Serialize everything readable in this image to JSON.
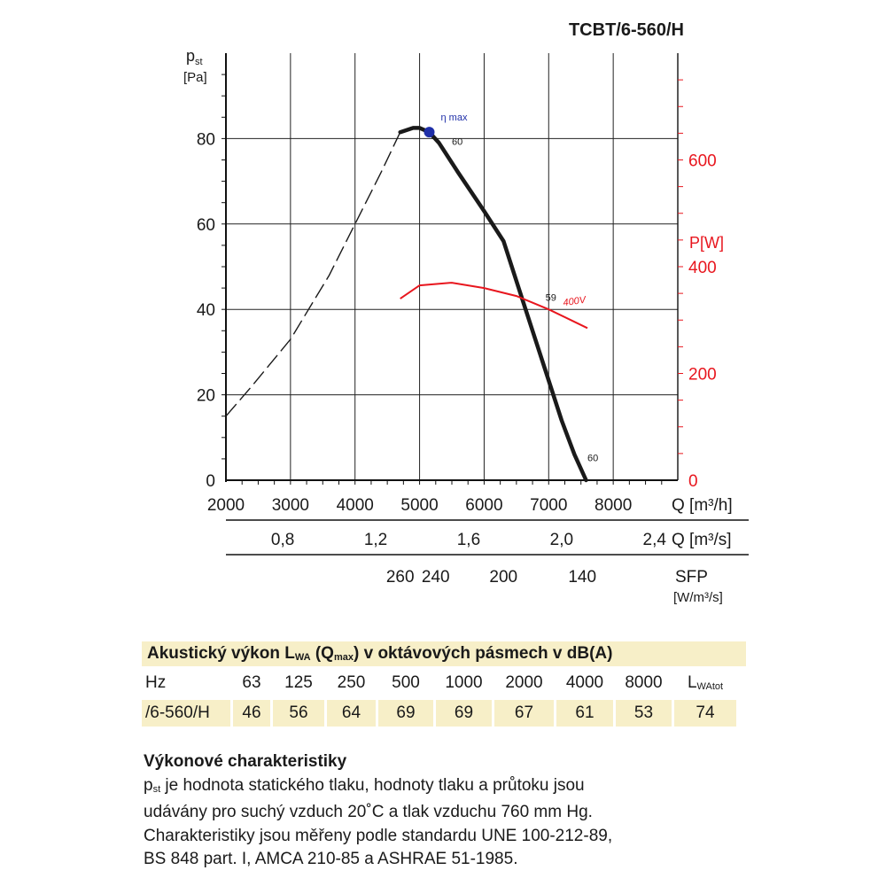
{
  "model": "TCBT/6-560/H",
  "chart_data": {
    "type": "line",
    "y_axis_label": "p",
    "y_axis_label_sub": "st",
    "y_axis_unit": "[Pa]",
    "y_ticks": [
      0,
      20,
      40,
      60,
      80
    ],
    "ylim": [
      0,
      100
    ],
    "x_axis_label": "Q [m³/h]",
    "x_ticks": [
      2000,
      3000,
      4000,
      5000,
      6000,
      7000,
      8000
    ],
    "xlim": [
      2000,
      9000
    ],
    "secondary_x_label": "Q [m³/s]",
    "secondary_x_ticks": [
      {
        "label": "0,8",
        "value": 0.8
      },
      {
        "label": "1,2",
        "value": 1.2
      },
      {
        "label": "1,6",
        "value": 1.6
      },
      {
        "label": "2,0",
        "value": 2.0
      },
      {
        "label": "2,4",
        "value": 2.4
      }
    ],
    "sfp_label": "SFP",
    "sfp_unit": "[W/m³/s]",
    "sfp_ticks": [
      {
        "label": "260",
        "q": 4700
      },
      {
        "label": "240",
        "q": 5250
      },
      {
        "label": "200",
        "q": 6300
      },
      {
        "label": "140",
        "q": 7520
      }
    ],
    "right_axis_label": "P[W]",
    "right_axis_ticks": [
      0,
      200,
      400,
      600
    ],
    "right_axis_range": [
      0,
      800
    ],
    "series": [
      {
        "x": [
          2000,
          2400,
          3000,
          3600,
          4000,
          4400,
          4700
        ],
        "y": [
          15,
          22,
          33,
          48,
          60,
          72,
          81.5
        ],
        "style": "dashed",
        "color": "#1a1a1a"
      },
      {
        "x": [
          4700,
          4900,
          5000,
          5150,
          5300,
          5600,
          6000,
          6300,
          6600,
          6900,
          7200,
          7400,
          7580
        ],
        "y": [
          81.5,
          82.5,
          82.5,
          81.5,
          79,
          72,
          63,
          56,
          42,
          28,
          14,
          6,
          0
        ],
        "style": "solid",
        "color": "#1a1a1a"
      },
      {
        "name": "400V",
        "x": [
          4700,
          5000,
          5500,
          6000,
          6500,
          7000,
          7600
        ],
        "y_power": [
          340,
          365,
          370,
          360,
          345,
          320,
          285
        ],
        "style": "solid",
        "color": "#e8161e"
      }
    ],
    "annotations": [
      {
        "text": "η max",
        "x": 5150,
        "y": 81.5,
        "color": "#1f2fa8"
      },
      {
        "text": "60",
        "x": 5500,
        "y": 78.5
      },
      {
        "text": "59",
        "x": 6950,
        "y": 42
      },
      {
        "text": "60",
        "x": 7600,
        "y": 3
      },
      {
        "text": "400V",
        "x": 7230,
        "power": 320,
        "color": "#e8161e"
      }
    ]
  },
  "acoustic_table": {
    "title_main": "Akustický výkon L",
    "title_sub1": "WA",
    "title_mid": " (Q",
    "title_sub2": "max",
    "title_end": ") v oktávových pásmech v dB(A)",
    "header": [
      "Hz",
      "63",
      "125",
      "250",
      "500",
      "1000",
      "2000",
      "4000",
      "8000"
    ],
    "header_last_main": "L",
    "header_last_sub": "WAtot",
    "row": [
      "/6-560/H",
      "46",
      "56",
      "64",
      "69",
      "69",
      "67",
      "61",
      "53",
      "74"
    ]
  },
  "performance": {
    "heading": "Výkonové charakteristiky",
    "line1_sub": "st",
    "line1_pre": "p",
    "line1_rest": " je hodnota statického tlaku, hodnoty tlaku a průtoku jsou",
    "line2": "udávány pro suchý vzduch 20˚C a tlak vzduchu 760 mm Hg.",
    "line3": "Charakteristiky jsou měřeny podle standardu UNE 100-212-89,",
    "line4": "BS 848 part. I, AMCA 210-85 a ASHRAE 51-1985."
  },
  "colors": {
    "curve": "#1a1a1a",
    "power": "#e8161e",
    "eta": "#1f2fa8",
    "table_bg": "#f7efc8"
  }
}
